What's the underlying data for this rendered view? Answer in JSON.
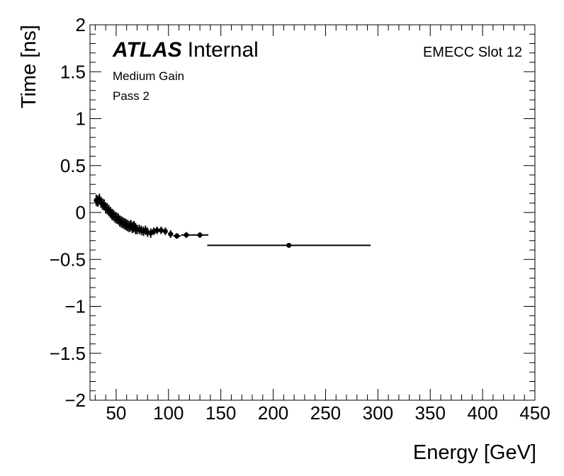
{
  "chart_data": {
    "type": "scatter",
    "xlabel": "Energy [GeV]",
    "ylabel": "Time [ns]",
    "xlim": [
      25,
      450
    ],
    "ylim": [
      -2,
      2
    ],
    "x_ticks": [
      50,
      100,
      150,
      200,
      250,
      300,
      350,
      400,
      450
    ],
    "x_tick_labels": [
      "50",
      "100",
      "150",
      "200",
      "250",
      "300",
      "350",
      "400",
      "450"
    ],
    "y_ticks": [
      -2,
      -1.5,
      -1,
      -0.5,
      0,
      0.5,
      1,
      1.5,
      2
    ],
    "y_tick_labels": [
      "−2",
      "−1.5",
      "−1",
      "−0.5",
      "0",
      "0.5",
      "1",
      "1.5",
      "2"
    ],
    "legend": "none",
    "grid": false,
    "points": [
      {
        "x": 31,
        "y": 0.13,
        "xerr": 0.7,
        "yerr": 0.06
      },
      {
        "x": 32.5,
        "y": 0.12,
        "xerr": 0.7,
        "yerr": 0.06
      },
      {
        "x": 34,
        "y": 0.14,
        "xerr": 0.7,
        "yerr": 0.06
      },
      {
        "x": 35.5,
        "y": 0.11,
        "xerr": 0.7,
        "yerr": 0.06
      },
      {
        "x": 37,
        "y": 0.09,
        "xerr": 0.7,
        "yerr": 0.06
      },
      {
        "x": 38.5,
        "y": 0.08,
        "xerr": 0.7,
        "yerr": 0.06
      },
      {
        "x": 40,
        "y": 0.05,
        "xerr": 0.7,
        "yerr": 0.06
      },
      {
        "x": 41.5,
        "y": 0.04,
        "xerr": 0.7,
        "yerr": 0.06
      },
      {
        "x": 43,
        "y": 0.02,
        "xerr": 0.7,
        "yerr": 0.06
      },
      {
        "x": 44.5,
        "y": 0.0,
        "xerr": 0.7,
        "yerr": 0.06
      },
      {
        "x": 46,
        "y": -0.02,
        "xerr": 0.7,
        "yerr": 0.06
      },
      {
        "x": 47.5,
        "y": -0.03,
        "xerr": 0.7,
        "yerr": 0.06
      },
      {
        "x": 49,
        "y": -0.05,
        "xerr": 0.7,
        "yerr": 0.06
      },
      {
        "x": 50.5,
        "y": -0.06,
        "xerr": 0.7,
        "yerr": 0.06
      },
      {
        "x": 52,
        "y": -0.07,
        "xerr": 0.7,
        "yerr": 0.06
      },
      {
        "x": 53.5,
        "y": -0.09,
        "xerr": 0.7,
        "yerr": 0.06
      },
      {
        "x": 55,
        "y": -0.1,
        "xerr": 0.7,
        "yerr": 0.06
      },
      {
        "x": 56.5,
        "y": -0.11,
        "xerr": 0.7,
        "yerr": 0.06
      },
      {
        "x": 58,
        "y": -0.12,
        "xerr": 0.7,
        "yerr": 0.06
      },
      {
        "x": 59.5,
        "y": -0.13,
        "xerr": 0.7,
        "yerr": 0.06
      },
      {
        "x": 61,
        "y": -0.14,
        "xerr": 0.7,
        "yerr": 0.06
      },
      {
        "x": 62.5,
        "y": -0.15,
        "xerr": 0.7,
        "yerr": 0.06
      },
      {
        "x": 64,
        "y": -0.14,
        "xerr": 0.7,
        "yerr": 0.06
      },
      {
        "x": 65.5,
        "y": -0.16,
        "xerr": 0.7,
        "yerr": 0.06
      },
      {
        "x": 67,
        "y": -0.15,
        "xerr": 0.7,
        "yerr": 0.06
      },
      {
        "x": 68.5,
        "y": -0.17,
        "xerr": 0.7,
        "yerr": 0.06
      },
      {
        "x": 70,
        "y": -0.18,
        "xerr": 0.7,
        "yerr": 0.05
      },
      {
        "x": 72,
        "y": -0.18,
        "xerr": 0.8,
        "yerr": 0.05
      },
      {
        "x": 74,
        "y": -0.19,
        "xerr": 0.8,
        "yerr": 0.05
      },
      {
        "x": 76,
        "y": -0.2,
        "xerr": 0.8,
        "yerr": 0.05
      },
      {
        "x": 78,
        "y": -0.19,
        "xerr": 0.8,
        "yerr": 0.05
      },
      {
        "x": 80,
        "y": -0.21,
        "xerr": 0.8,
        "yerr": 0.05
      },
      {
        "x": 83,
        "y": -0.22,
        "xerr": 1.2,
        "yerr": 0.05
      },
      {
        "x": 86,
        "y": -0.2,
        "xerr": 1.2,
        "yerr": 0.04
      },
      {
        "x": 89,
        "y": -0.19,
        "xerr": 1.2,
        "yerr": 0.04
      },
      {
        "x": 93,
        "y": -0.19,
        "xerr": 1.5,
        "yerr": 0.04
      },
      {
        "x": 97,
        "y": -0.2,
        "xerr": 1.5,
        "yerr": 0.04
      },
      {
        "x": 102,
        "y": -0.23,
        "xerr": 2.5,
        "yerr": 0.04
      },
      {
        "x": 108,
        "y": -0.25,
        "xerr": 3.5,
        "yerr": 0.03
      },
      {
        "x": 117,
        "y": -0.24,
        "xerr": 5,
        "yerr": 0.03
      },
      {
        "x": 130,
        "y": -0.24,
        "xerr": 8,
        "yerr": 0.03
      },
      {
        "x": 215,
        "y": -0.35,
        "xerr": 78,
        "yerr": 0.02
      }
    ]
  },
  "annotations": {
    "atlas_bold": "ATLAS",
    "atlas_rest": "Internal",
    "gain": "Medium Gain",
    "pass": "Pass 2",
    "region": "EMECC Slot 12"
  }
}
